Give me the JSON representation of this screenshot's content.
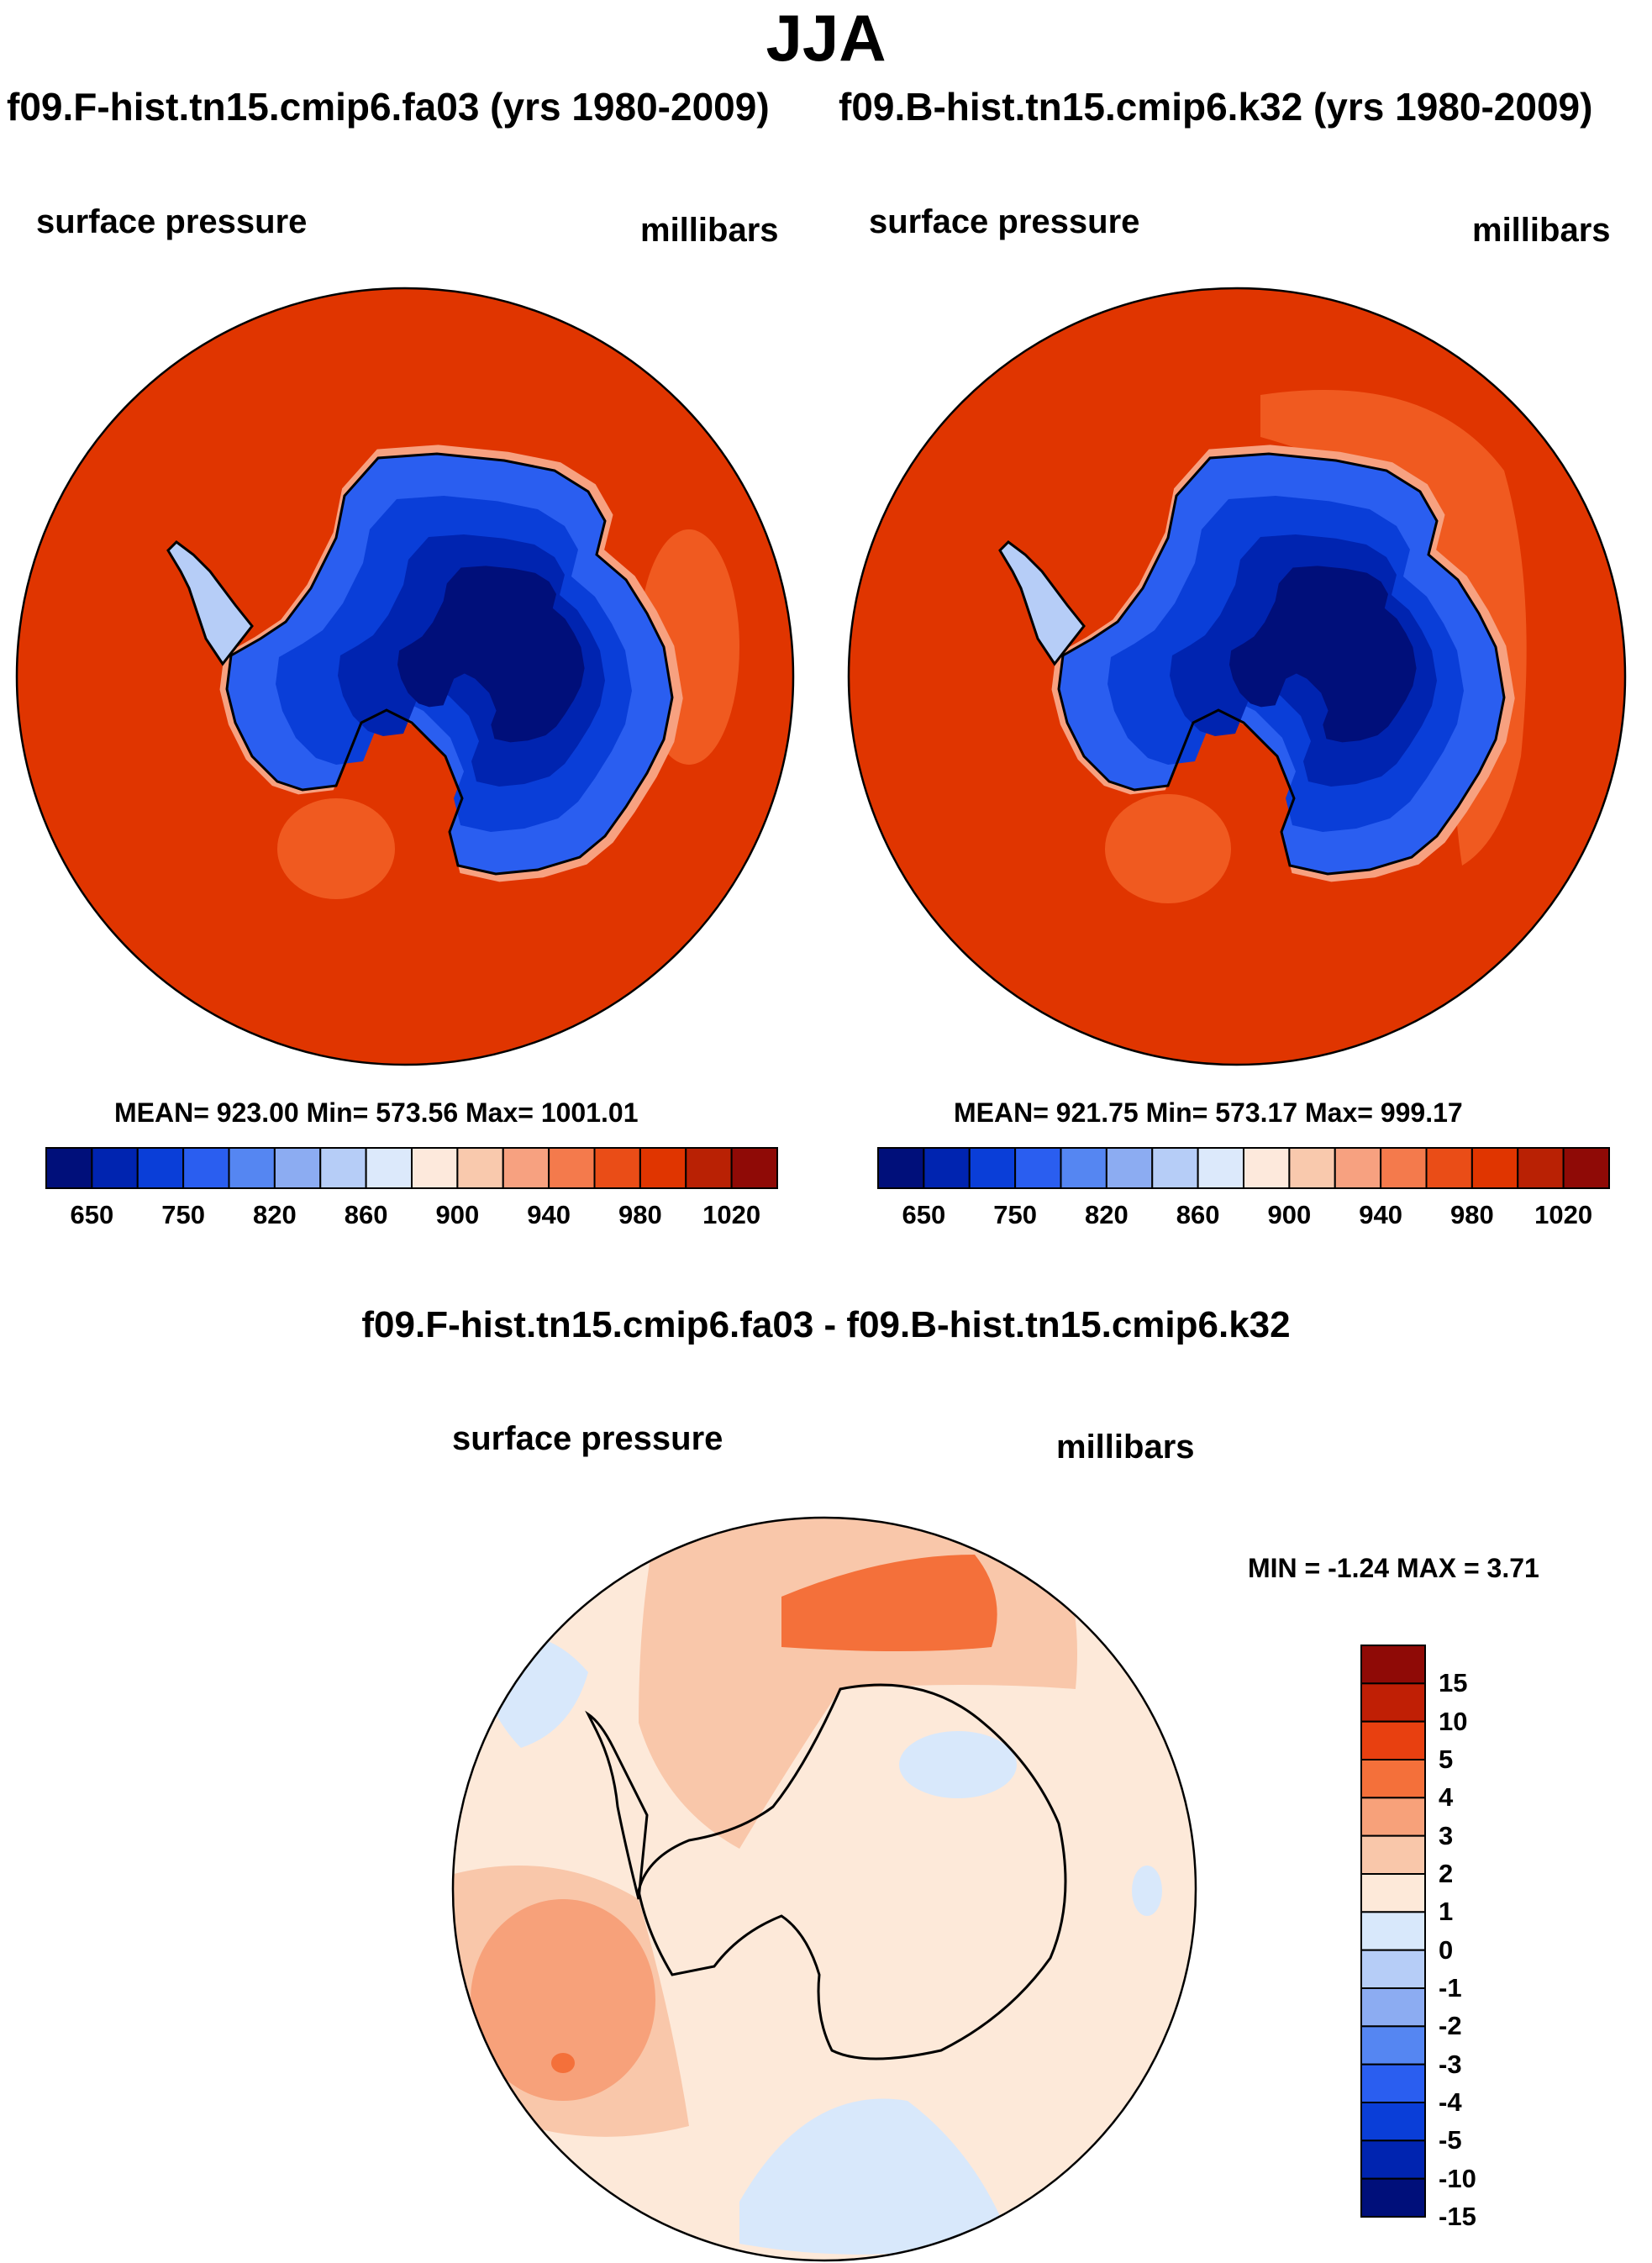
{
  "title": "JJA",
  "panels": [
    {
      "case": "f09.F-hist.tn15.cmip6.fa03 (yrs 1980-2009)",
      "variable": "surface pressure",
      "units": "millibars",
      "stats": "MEAN= 923.00  Min= 573.56  Max= 1001.01"
    },
    {
      "case": "f09.B-hist.tn15.cmip6.k32 (yrs 1980-2009)",
      "variable": "surface pressure",
      "units": "millibars",
      "stats": "MEAN= 921.75  Min= 573.17  Max= 999.17"
    }
  ],
  "colorbar": {
    "colors": [
      "#000f7a",
      "#0024b0",
      "#0a3ed8",
      "#2a5ef0",
      "#5586f2",
      "#8cacf2",
      "#b6cdf7",
      "#dce9fb",
      "#fde9dc",
      "#f9c9ad",
      "#f7a180",
      "#f47a4c",
      "#ea4d17",
      "#e03500",
      "#b92104",
      "#8f0a06"
    ],
    "labels": [
      "650",
      "750",
      "820",
      "860",
      "900",
      "940",
      "980",
      "1020"
    ]
  },
  "diff": {
    "title": "f09.F-hist.tn15.cmip6.fa03 - f09.B-hist.tn15.cmip6.k32",
    "variable": "surface pressure",
    "units": "millibars",
    "minmax": "MIN =  -1.24 MAX =   3.71",
    "colors": [
      "#8f0a06",
      "#c01f05",
      "#e84010",
      "#f4703a",
      "#f7a17a",
      "#f9c7aa",
      "#fde9d9",
      "#d8e8fb",
      "#b6cdf7",
      "#8cacf2",
      "#5586f2",
      "#2a5ef0",
      "#0a3ed8",
      "#0024b0",
      "#000f7a"
    ],
    "labels": [
      "15",
      "10",
      "5",
      "4",
      "3",
      "2",
      "1",
      "0",
      "-1",
      "-2",
      "-3",
      "-4",
      "-5",
      "-10",
      "-15"
    ]
  }
}
